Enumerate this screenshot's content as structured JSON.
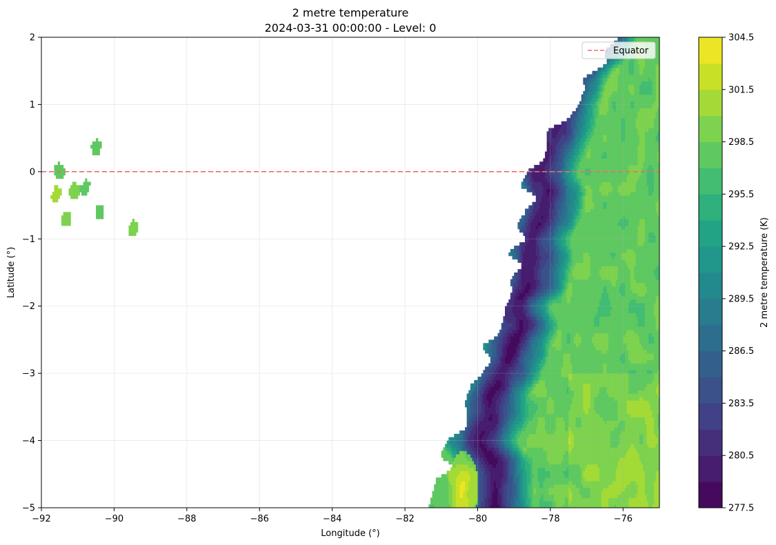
{
  "chart_data": {
    "type": "heatmap",
    "title": "2 metre temperature",
    "subtitle": "2024-03-31 00:00:00 - Level: 0",
    "xlabel": "Longitude (°)",
    "ylabel": "Latitude (°)",
    "xlim": [
      -92,
      -75
    ],
    "ylim": [
      -5,
      2
    ],
    "x_ticks": [
      -92,
      -90,
      -88,
      -86,
      -84,
      -82,
      -80,
      -78,
      -76
    ],
    "x_tick_labels": [
      "−92",
      "−90",
      "−88",
      "−86",
      "−84",
      "−82",
      "−80",
      "−78",
      "−76"
    ],
    "y_ticks": [
      -5,
      -4,
      -3,
      -2,
      -1,
      0,
      1,
      2
    ],
    "y_tick_labels": [
      "−5",
      "−4",
      "−3",
      "−2",
      "−1",
      "0",
      "1",
      "2"
    ],
    "grid": true,
    "colormap": "viridis",
    "colorbar": {
      "label": "2 metre temperature (K)",
      "min": 277.5,
      "max": 304.5,
      "step": 1.5,
      "ticks": [
        277.5,
        280.5,
        283.5,
        286.5,
        289.5,
        292.5,
        295.5,
        298.5,
        301.5,
        304.5
      ],
      "tick_labels": [
        "277.5",
        "280.5",
        "283.5",
        "286.5",
        "289.5",
        "292.5",
        "295.5",
        "298.5",
        "301.5",
        "304.5"
      ]
    },
    "reference_line": {
      "name": "Equator",
      "latitude": 0,
      "color": "#ef6b6b",
      "style": "dashed"
    },
    "legend": {
      "placement": "top-right",
      "entries": [
        "Equator"
      ]
    },
    "field": {
      "coast_longitude": [
        [
          2.0,
          -76.3
        ],
        [
          1.7,
          -76.6
        ],
        [
          1.4,
          -76.9
        ],
        [
          1.1,
          -77.3
        ],
        [
          0.9,
          -77.6
        ],
        [
          0.7,
          -77.9
        ],
        [
          0.5,
          -78.1
        ],
        [
          0.2,
          -78.3
        ],
        [
          0.0,
          -78.5
        ],
        [
          -0.3,
          -78.6
        ],
        [
          -0.6,
          -78.7
        ],
        [
          -0.9,
          -78.8
        ],
        [
          -1.2,
          -78.9
        ],
        [
          -1.5,
          -79.0
        ],
        [
          -1.8,
          -79.2
        ],
        [
          -2.1,
          -79.4
        ],
        [
          -2.4,
          -79.6
        ],
        [
          -2.7,
          -79.8
        ],
        [
          -3.0,
          -80.0
        ],
        [
          -3.3,
          -80.2
        ],
        [
          -3.6,
          -80.4
        ],
        [
          -3.9,
          -80.6
        ],
        [
          -4.2,
          -80.8
        ],
        [
          -4.5,
          -81.0
        ],
        [
          -4.8,
          -81.1
        ],
        [
          -5.0,
          -81.3
        ]
      ],
      "cold_ridge_longitude": [
        [
          2.0,
          -76.7
        ],
        [
          1.5,
          -77.4
        ],
        [
          1.0,
          -77.8
        ],
        [
          0.5,
          -78.0
        ],
        [
          0.0,
          -78.1
        ],
        [
          -0.5,
          -78.3
        ],
        [
          -1.0,
          -78.5
        ],
        [
          -1.5,
          -78.7
        ],
        [
          -2.0,
          -78.8
        ],
        [
          -2.5,
          -79.1
        ],
        [
          -3.0,
          -79.4
        ],
        [
          -3.5,
          -79.6
        ],
        [
          -4.0,
          -79.8
        ],
        [
          -4.5,
          -79.7
        ],
        [
          -5.0,
          -79.7
        ]
      ],
      "cold_min_temperature": 279.0,
      "lowland_temperature": 298.0,
      "warm_pocket": {
        "lon": -80.4,
        "lat": -4.7,
        "temperature": 304.0
      },
      "interior_warm_zone": {
        "lon_from": -77.5,
        "lat_from": -3.0,
        "temperature": 300.5
      },
      "islands": [
        {
          "lon": -91.3,
          "lat": -0.7,
          "temperature": 299.0
        },
        {
          "lon": -91.5,
          "lat": 0.0,
          "temperature": 298.0
        },
        {
          "lon": -91.1,
          "lat": -0.3,
          "temperature": 299.0
        },
        {
          "lon": -90.4,
          "lat": -0.6,
          "temperature": 297.5
        },
        {
          "lon": -90.5,
          "lat": 0.35,
          "temperature": 298.0
        },
        {
          "lon": -90.8,
          "lat": -0.25,
          "temperature": 298.0
        },
        {
          "lon": -89.5,
          "lat": -0.85,
          "temperature": 298.5
        },
        {
          "lon": -91.6,
          "lat": -0.35,
          "temperature": 300.0
        }
      ]
    }
  }
}
